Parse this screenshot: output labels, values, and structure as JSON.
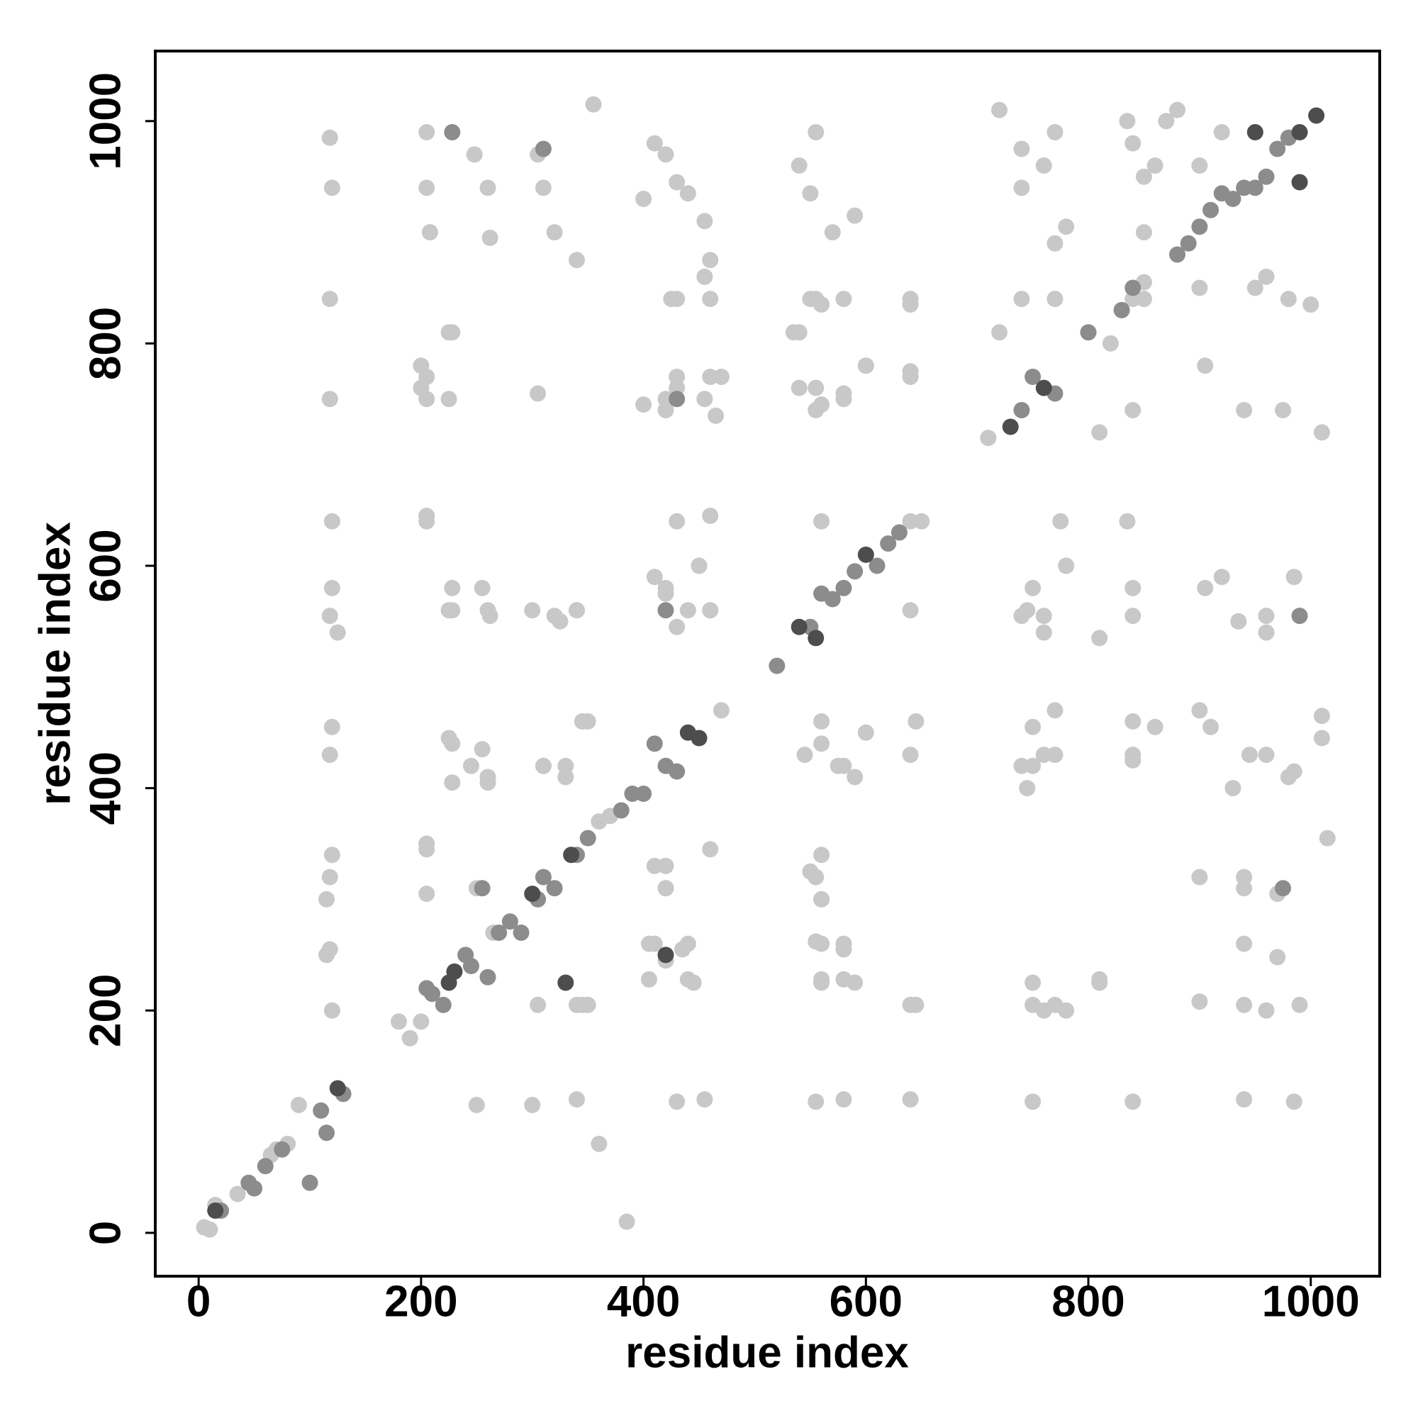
{
  "chart_data": {
    "type": "scatter",
    "xlabel": "residue index",
    "ylabel": "residue index",
    "xlim": [
      -39,
      1062
    ],
    "ylim": [
      -39,
      1063
    ],
    "xticks": [
      0,
      200,
      400,
      600,
      800,
      1000
    ],
    "yticks": [
      0,
      200,
      400,
      600,
      800,
      1000
    ],
    "series": [
      {
        "color": "#c8c8c8",
        "x": [
          118,
          120,
          118,
          118,
          120,
          120,
          118,
          125,
          120,
          118,
          120,
          118,
          115,
          118,
          115,
          120,
          205,
          205,
          208,
          228,
          205,
          205,
          205,
          228,
          228,
          228,
          228,
          205,
          205,
          248,
          260,
          262,
          255,
          262,
          255,
          260,
          305,
          310,
          320,
          340,
          305,
          300,
          320,
          340,
          310,
          330,
          345,
          350,
          355,
          400,
          410,
          420,
          430,
          440,
          455,
          460,
          425,
          430,
          420,
          460,
          465,
          410,
          420,
          440,
          450,
          460,
          410,
          420,
          410,
          420,
          440,
          445,
          350,
          340,
          385,
          360,
          555,
          540,
          550,
          570,
          590,
          550,
          560,
          540,
          555,
          560,
          580,
          600,
          640,
          640,
          560,
          650,
          560,
          545,
          580,
          600,
          560,
          550,
          560,
          560,
          580,
          560,
          590,
          645,
          640,
          645,
          720,
          740,
          760,
          770,
          740,
          780,
          770,
          740,
          770,
          760,
          750,
          740,
          780,
          775,
          835,
          840,
          850,
          850,
          850,
          810,
          835,
          840,
          840,
          810,
          840,
          860,
          840,
          750,
          740,
          760,
          770,
          745,
          750,
          760,
          780,
          810,
          860,
          900,
          920,
          880,
          870,
          985,
          940,
          840,
          750,
          640,
          580,
          555,
          455,
          430,
          340,
          300,
          250,
          990,
          940,
          900,
          810,
          770,
          750,
          640,
          580,
          560,
          440,
          405,
          345,
          305,
          970,
          940,
          580,
          555,
          435,
          405,
          970,
          940,
          900,
          560,
          555,
          420,
          420,
          460,
          930,
          980,
          945,
          910,
          840,
          770,
          750,
          590,
          575,
          560,
          330,
          310,
          260,
          245,
          225,
          205,
          990,
          960,
          935,
          840,
          760,
          745,
          780,
          640,
          460,
          430,
          420,
          450,
          340,
          325,
          260,
          225,
          205,
          430,
          460,
          1010,
          975,
          940,
          905,
          840,
          540,
          580,
          555,
          600,
          640,
          1000,
          980,
          950,
          900,
          720,
          640,
          580,
          555,
          535,
          460,
          455,
          430,
          455,
          420,
          430,
          470,
          400,
          225,
          200,
          200,
          225,
          960,
          1015,
          1010,
          1010,
          985,
          960,
          940,
          960,
          900,
          905,
          920,
          985,
          960,
          5,
          10,
          15,
          35,
          65,
          70,
          80,
          90,
          180,
          190,
          200,
          250,
          265,
          360,
          370,
          470,
          640,
          710,
          800,
          820,
          830,
          850
        ],
        "y": [
          985,
          940,
          840,
          750,
          640,
          580,
          555,
          540,
          455,
          430,
          340,
          320,
          300,
          255,
          250,
          200,
          990,
          940,
          900,
          810,
          770,
          750,
          640,
          580,
          560,
          440,
          405,
          345,
          305,
          970,
          940,
          895,
          580,
          555,
          435,
          405,
          970,
          940,
          900,
          875,
          755,
          560,
          555,
          560,
          420,
          420,
          460,
          460,
          1015,
          930,
          980,
          970,
          945,
          935,
          910,
          875,
          840,
          770,
          750,
          770,
          735,
          590,
          575,
          560,
          600,
          560,
          330,
          310,
          260,
          245,
          260,
          225,
          205,
          205,
          10,
          80,
          990,
          960,
          935,
          900,
          915,
          840,
          835,
          810,
          760,
          745,
          755,
          780,
          840,
          770,
          640,
          640,
          460,
          430,
          420,
          450,
          340,
          325,
          300,
          260,
          260,
          225,
          225,
          205,
          430,
          460,
          1010,
          975,
          960,
          990,
          940,
          905,
          890,
          840,
          840,
          540,
          580,
          555,
          600,
          640,
          1000,
          980,
          950,
          900,
          840,
          720,
          640,
          580,
          555,
          535,
          460,
          455,
          430,
          455,
          420,
          430,
          470,
          400,
          225,
          200,
          200,
          225,
          960,
          960,
          990,
          1010,
          1000,
          118,
          120,
          118,
          118,
          120,
          120,
          118,
          120,
          118,
          120,
          115,
          115,
          205,
          205,
          208,
          228,
          205,
          205,
          205,
          228,
          228,
          228,
          228,
          205,
          205,
          248,
          260,
          255,
          262,
          255,
          260,
          305,
          310,
          320,
          300,
          320,
          310,
          330,
          345,
          400,
          410,
          430,
          455,
          425,
          430,
          420,
          410,
          420,
          440,
          410,
          420,
          410,
          420,
          445,
          350,
          555,
          540,
          550,
          840,
          555,
          560,
          600,
          560,
          560,
          545,
          580,
          600,
          560,
          550,
          560,
          560,
          645,
          640,
          645,
          720,
          740,
          740,
          780,
          740,
          760,
          750,
          740,
          780,
          775,
          835,
          840,
          850,
          850,
          810,
          835,
          840,
          840,
          810,
          840,
          860,
          840,
          750,
          740,
          760,
          770,
          745,
          750,
          760,
          780,
          810,
          860,
          355,
          445,
          465,
          415,
          200,
          320,
          430,
          470,
          580,
          590,
          590,
          555,
          5,
          3,
          25,
          35,
          70,
          75,
          80,
          115,
          190,
          175,
          190,
          310,
          270,
          370,
          375,
          470,
          640,
          715,
          810,
          800,
          830,
          855
        ]
      },
      {
        "color": "#8c8c8c",
        "x": [
          20,
          45,
          50,
          60,
          75,
          100,
          110,
          115,
          130,
          205,
          210,
          220,
          240,
          245,
          255,
          260,
          270,
          280,
          290,
          305,
          310,
          320,
          340,
          350,
          380,
          390,
          400,
          410,
          420,
          430,
          520,
          550,
          560,
          570,
          580,
          590,
          610,
          620,
          630,
          740,
          750,
          770,
          800,
          830,
          840,
          880,
          890,
          900,
          910,
          920,
          930,
          940,
          960,
          970,
          980,
          430,
          420,
          310,
          228,
          975,
          950,
          990
        ],
        "y": [
          20,
          45,
          40,
          60,
          75,
          45,
          110,
          90,
          125,
          220,
          215,
          205,
          250,
          240,
          310,
          230,
          270,
          280,
          270,
          300,
          320,
          310,
          340,
          355,
          380,
          395,
          395,
          440,
          420,
          415,
          510,
          545,
          575,
          570,
          580,
          595,
          600,
          620,
          630,
          740,
          770,
          755,
          810,
          830,
          850,
          880,
          890,
          905,
          920,
          935,
          930,
          940,
          950,
          975,
          985,
          750,
          560,
          975,
          990,
          310,
          940,
          555
        ]
      },
      {
        "color": "#4d4d4d",
        "x": [
          300,
          335,
          225,
          230,
          440,
          450,
          540,
          555,
          600,
          730,
          760,
          1005,
          990,
          950,
          990,
          420,
          330,
          15,
          125
        ],
        "y": [
          305,
          340,
          225,
          235,
          450,
          445,
          545,
          535,
          610,
          725,
          760,
          1005,
          990,
          990,
          945,
          250,
          225,
          20,
          130
        ]
      }
    ]
  }
}
